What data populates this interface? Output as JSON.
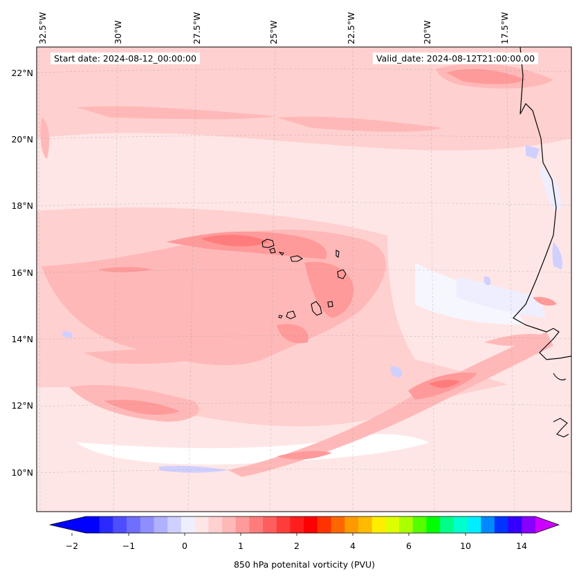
{
  "map": {
    "start_date": "Start date: 2024-08-12_00:00:00",
    "valid_date": "Valid_date: 2024-08-12T21:00:00.00",
    "lon_labels": [
      "32.5°W",
      "30°W",
      "27.5°W",
      "25°W",
      "22.5°W",
      "20°W",
      "17.5°W"
    ],
    "lat_labels": [
      "22°N",
      "20°N",
      "18°N",
      "16°N",
      "14°N",
      "12°N",
      "10°N"
    ],
    "field_note": "850 hPa potential vorticity shaded, Cape Verde islands and West African coast outlined"
  },
  "colorbar": {
    "title": "850 hPa potenital vorticity (PVU)",
    "tick_labels": [
      "−2",
      "−1",
      "0",
      "1",
      "2",
      "4",
      "6",
      "10",
      "14"
    ],
    "colors": [
      "#0000ff",
      "#2a2aff",
      "#4e4eff",
      "#6e6eff",
      "#8e8eff",
      "#b0b0ff",
      "#d0d0ff",
      "#eeeeff",
      "#ffe6e6",
      "#ffd0d0",
      "#ffb8b8",
      "#ff9a9a",
      "#ff7c7c",
      "#ff5e5e",
      "#ff3c3c",
      "#ff1e1e",
      "#ff0000",
      "#ff3300",
      "#ff6600",
      "#ff9900",
      "#ffbb00",
      "#ffee00",
      "#ddff00",
      "#aaff00",
      "#55ff00",
      "#00ff00",
      "#00ff88",
      "#00ffcc",
      "#00eeff",
      "#0088ff",
      "#0033ff",
      "#3300ff",
      "#8800ff"
    ],
    "under_color": "#0000ff",
    "over_color": "#cc00ff"
  }
}
